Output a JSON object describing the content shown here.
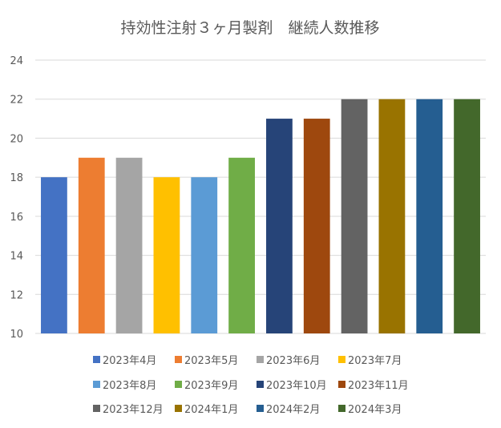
{
  "chart_data": {
    "type": "bar",
    "title": "持効性注射３ヶ月製剤　継続人数推移",
    "xlabel": "",
    "ylabel": "",
    "ylim": [
      10,
      24
    ],
    "yticks": [
      "10",
      "12",
      "14",
      "16",
      "18",
      "20",
      "22",
      "24"
    ],
    "grid": true,
    "legend_position": "bottom",
    "categories": [
      "2023年4月",
      "2023年5月",
      "2023年6月",
      "2023年7月",
      "2023年8月",
      "2023年9月",
      "2023年10月",
      "2023年11月",
      "2023年12月",
      "2024年1月",
      "2024年2月",
      "2024年3月"
    ],
    "values": [
      18,
      19,
      19,
      18,
      18,
      19,
      21,
      21,
      22,
      22,
      22,
      22
    ],
    "colors": [
      "#4472c4",
      "#ed7d31",
      "#a5a5a5",
      "#ffc000",
      "#5b9bd5",
      "#70ad47",
      "#264478",
      "#9e480e",
      "#636363",
      "#997300",
      "#255e91",
      "#43682b"
    ]
  }
}
